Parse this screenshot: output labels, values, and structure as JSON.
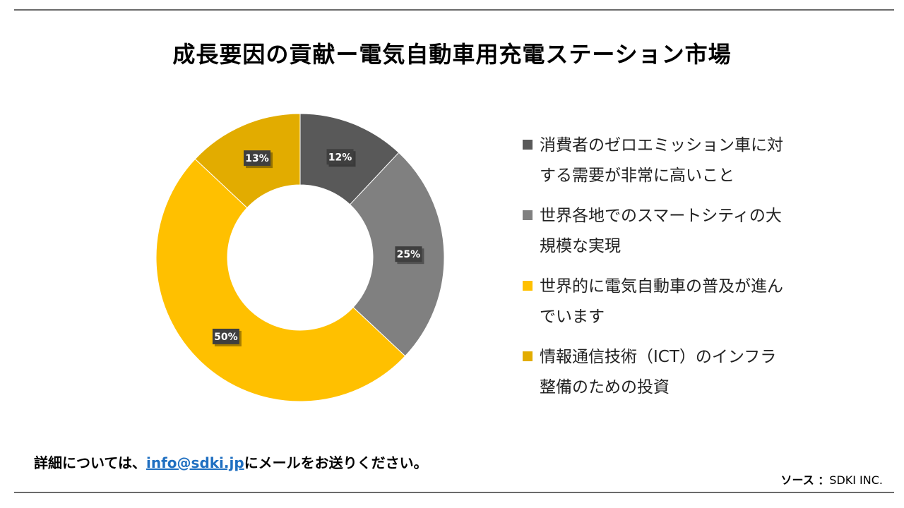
{
  "title": "成長要因の貢献ー電気自動車用充電ステーション市場",
  "chart_data": {
    "type": "pie",
    "variant": "donut",
    "categories": [
      "消費者のゼロエミッション車に対する需要が非常に高いこと",
      "世界各地でのスマートシティの大規模な実現",
      "世界的に電気自動車の普及が進んでいます",
      " 情報通信技術（ICT）のインフラ整備のための投資"
    ],
    "values": [
      12,
      25,
      50,
      13
    ],
    "data_labels": [
      "12%",
      "25%",
      "50%",
      "13%"
    ],
    "colors": [
      "#595959",
      "#808080",
      "#FFC000",
      "#E2AC00"
    ],
    "legend_placement": "right"
  },
  "legend": {
    "items": [
      {
        "line1": "消費者のゼロエミッション車に対",
        "line2": "する需要が非常に高いこと"
      },
      {
        "line1": "世界各地でのスマートシティの大",
        "line2": "規模な実現"
      },
      {
        "line1": "世界的に電気自動車の普及が進ん",
        "line2": "でいます"
      },
      {
        "line1": " 情報通信技術（ICT）のインフラ",
        "line2": "整備のための投資"
      }
    ]
  },
  "footer": {
    "prefix": "詳細については、",
    "email": "info@sdki.jp",
    "suffix": "にメールをお送りください。"
  },
  "source": {
    "label": "ソース ：",
    "value": "SDKI INC."
  }
}
